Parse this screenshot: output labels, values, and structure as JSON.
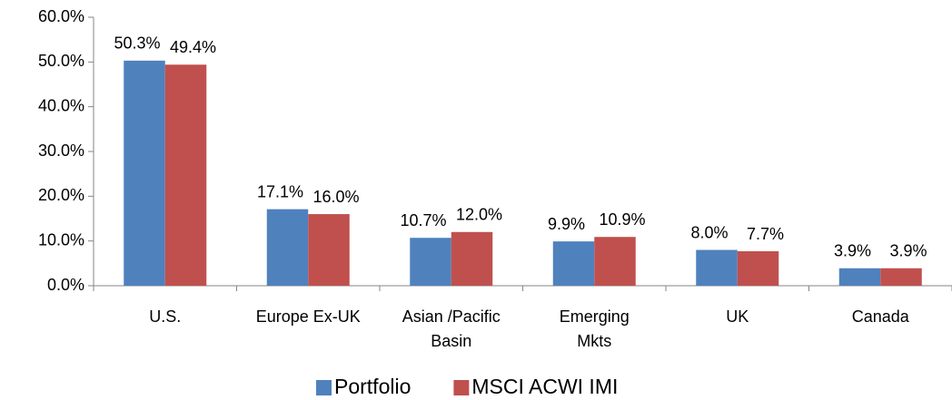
{
  "chart_data": {
    "type": "bar",
    "categories": [
      "U.S.",
      "Europe Ex-UK",
      "Asian /Pacific\nBasin",
      "Emerging\nMkts",
      "UK",
      "Canada"
    ],
    "series": [
      {
        "name": "Portfolio",
        "color": "#4f81bd",
        "values": [
          50.3,
          17.1,
          10.7,
          9.9,
          8.0,
          3.9
        ],
        "value_labels": [
          "50.3%",
          "17.1%",
          "10.7%",
          "9.9%",
          "8.0%",
          "3.9%"
        ]
      },
      {
        "name": "MSCI ACWI IMI",
        "color": "#c0504d",
        "values": [
          49.4,
          16.0,
          12.0,
          10.9,
          7.7,
          3.9
        ],
        "value_labels": [
          "49.4%",
          "16.0%",
          "12.0%",
          "10.9%",
          "7.7%",
          "3.9%"
        ]
      }
    ],
    "ylim": [
      0,
      60
    ],
    "yticks": [
      {
        "value": 0,
        "label": "0.0%"
      },
      {
        "value": 10,
        "label": "10.0%"
      },
      {
        "value": 20,
        "label": "20.0%"
      },
      {
        "value": 30,
        "label": "30.0%"
      },
      {
        "value": 40,
        "label": "40.0%"
      },
      {
        "value": 50,
        "label": "50.0%"
      },
      {
        "value": 60,
        "label": "60.0%"
      }
    ],
    "legend": "bottom"
  }
}
